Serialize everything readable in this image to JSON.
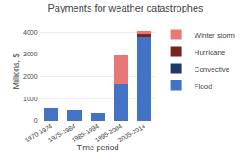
{
  "chart_data": {
    "type": "bar",
    "stacked": true,
    "title": "Payments for weather catastrophes",
    "xlabel": "Time period",
    "ylabel": "Millions, $",
    "categories": [
      "1970-1974",
      "1975-1984",
      "1985-1994",
      "1995-2004",
      "2005-2014"
    ],
    "series": [
      {
        "name": "Flood",
        "color": "#4472c4",
        "values": [
          580,
          470,
          350,
          1650,
          3820
        ]
      },
      {
        "name": "Convective",
        "color": "#1a3a6b",
        "values": [
          0,
          0,
          0,
          0,
          0
        ]
      },
      {
        "name": "Hurricane",
        "color": "#7b2323",
        "values": [
          0,
          0,
          0,
          0,
          110
        ]
      },
      {
        "name": "Winter storm",
        "color": "#e87878",
        "values": [
          0,
          0,
          0,
          1300,
          120
        ]
      }
    ],
    "ylim": [
      0,
      4500
    ],
    "yticks": [
      0,
      1000,
      2000,
      3000,
      4000
    ],
    "grid": true,
    "legend": "right"
  }
}
